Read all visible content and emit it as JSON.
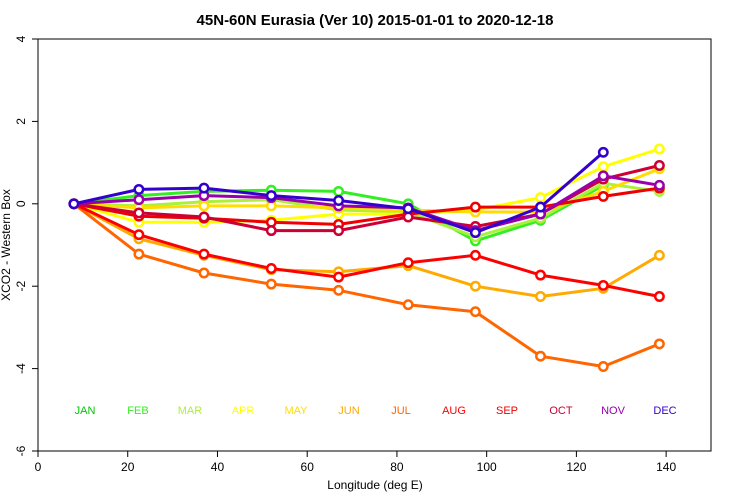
{
  "chart_data": {
    "type": "line",
    "title": "45N-60N Eurasia (Ver 10)   2015-01-01 to 2020-12-18",
    "xlabel": "Longitude (deg E)",
    "ylabel": "XCO2 - Western Box",
    "xlim": [
      0,
      150
    ],
    "ylim": [
      -6,
      4
    ],
    "xticks": [
      0,
      20,
      40,
      60,
      80,
      100,
      120,
      140
    ],
    "yticks": [
      -6,
      -4,
      -2,
      0,
      2,
      4
    ],
    "grid": false,
    "legend_placement": "inside-bottom",
    "series": [
      {
        "name": "JAN",
        "color": "#00c800",
        "x": [],
        "y": []
      },
      {
        "name": "FEB",
        "color": "#33ee22",
        "x": [
          8,
          22.5,
          37,
          52,
          67,
          82.5,
          97.5,
          112,
          126,
          138.5
        ],
        "y": [
          0,
          0.2,
          0.3,
          0.33,
          0.3,
          0.0,
          -0.9,
          -0.4,
          0.45,
          null
        ]
      },
      {
        "name": "MAR",
        "color": "#aaf03c",
        "x": [
          8,
          22.5,
          37,
          52,
          67,
          82.5,
          97.5,
          112,
          126,
          138.5
        ],
        "y": [
          0,
          -0.05,
          0.05,
          0.1,
          -0.15,
          -0.2,
          -0.8,
          -0.35,
          0.5,
          0.3
        ]
      },
      {
        "name": "APR",
        "color": "#ffff00",
        "x": [
          8,
          22.5,
          37,
          52,
          67,
          82.5,
          97.5,
          112,
          126,
          138.5
        ],
        "y": [
          0,
          -0.45,
          -0.45,
          -0.4,
          -0.25,
          -0.25,
          -0.15,
          0.15,
          0.9,
          1.33
        ]
      },
      {
        "name": "MAY",
        "color": "#ffdd00",
        "x": [
          8,
          22.5,
          37,
          52,
          67,
          82.5,
          97.5,
          112,
          126,
          138.5
        ],
        "y": [
          0,
          -0.1,
          -0.05,
          -0.05,
          -0.1,
          -0.15,
          -0.2,
          -0.2,
          0.3,
          0.85
        ]
      },
      {
        "name": "JUN",
        "color": "#ffaa00",
        "x": [
          8,
          22.5,
          37,
          52,
          67,
          82.5,
          97.5,
          112,
          126,
          138.5
        ],
        "y": [
          0,
          -0.85,
          -1.25,
          -1.6,
          -1.65,
          -1.5,
          -2.0,
          -2.25,
          -2.05,
          -1.25
        ]
      },
      {
        "name": "JUL",
        "color": "#ff6600",
        "x": [
          8,
          22.5,
          37,
          52,
          67,
          82.5,
          97.5,
          112,
          126,
          138.5
        ],
        "y": [
          0,
          -1.22,
          -1.68,
          -1.95,
          -2.1,
          -2.45,
          -2.62,
          -3.7,
          -3.95,
          -3.4
        ]
      },
      {
        "name": "AUG",
        "color": "#ff0000",
        "x": [
          8,
          22.5,
          37,
          52,
          67,
          82.5,
          97.5,
          112,
          126,
          138.5
        ],
        "y": [
          0,
          -0.75,
          -1.22,
          -1.57,
          -1.78,
          -1.43,
          -1.25,
          -1.73,
          -1.98,
          -2.25
        ]
      },
      {
        "name": "SEP",
        "color": "#ee0000",
        "x": [
          8,
          22.5,
          37,
          52,
          67,
          82.5,
          97.5,
          112,
          126,
          138.5
        ],
        "y": [
          0,
          -0.3,
          -0.35,
          -0.45,
          -0.5,
          -0.25,
          -0.08,
          -0.08,
          0.18,
          0.38
        ]
      },
      {
        "name": "OCT",
        "color": "#cc0033",
        "x": [
          8,
          22.5,
          37,
          52,
          67,
          82.5,
          97.5,
          112,
          126,
          138.5
        ],
        "y": [
          0,
          -0.22,
          -0.32,
          -0.65,
          -0.65,
          -0.32,
          -0.55,
          -0.25,
          0.6,
          0.93
        ]
      },
      {
        "name": "NOV",
        "color": "#9900aa",
        "x": [
          8,
          22.5,
          37,
          52,
          67,
          82.5,
          97.5,
          112,
          126,
          138.5
        ],
        "y": [
          0,
          0.1,
          0.2,
          0.15,
          -0.05,
          -0.1,
          -0.65,
          -0.25,
          0.68,
          0.45
        ]
      },
      {
        "name": "DEC",
        "color": "#3300cc",
        "x": [
          8,
          22.5,
          37,
          52,
          67,
          82.5,
          97.5,
          112,
          126
        ],
        "y": [
          0,
          0.35,
          0.38,
          0.2,
          0.08,
          -0.12,
          -0.7,
          -0.08,
          1.25
        ]
      }
    ]
  }
}
